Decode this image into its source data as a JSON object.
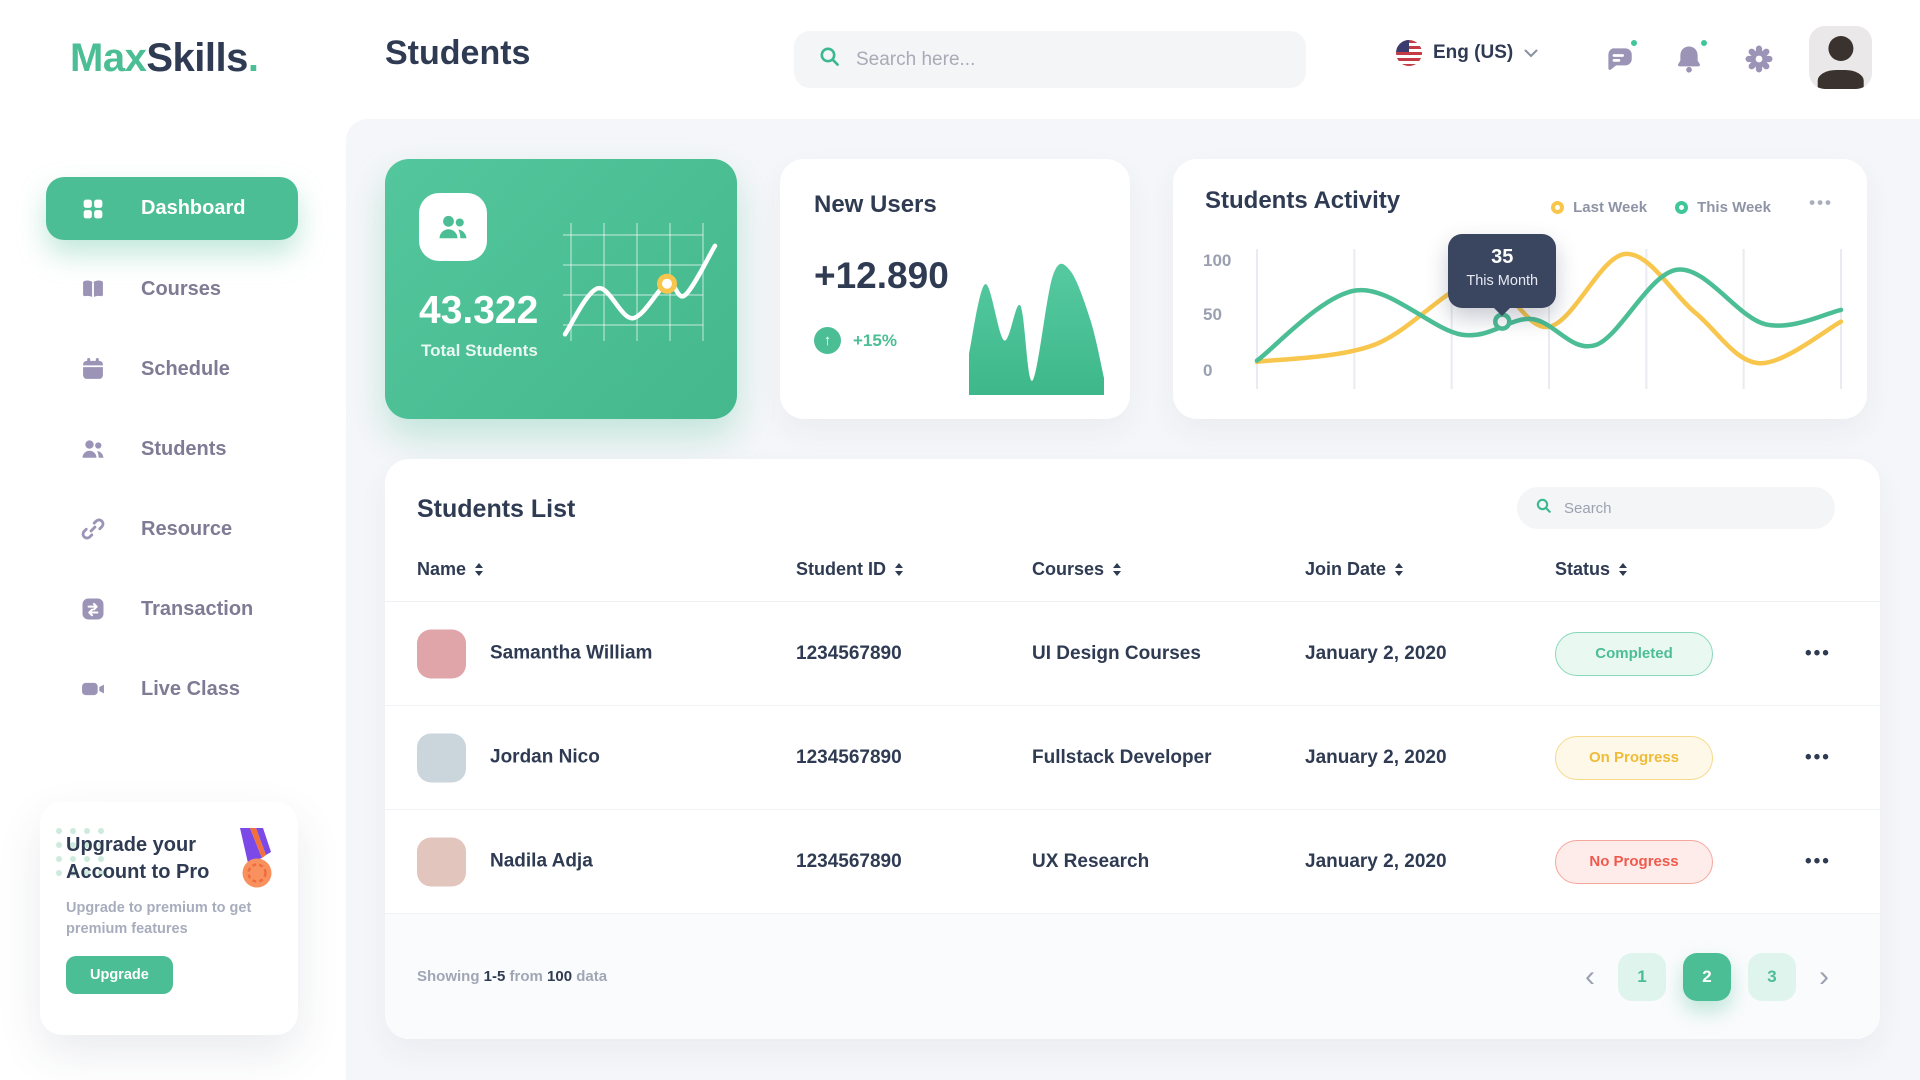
{
  "brand": {
    "max": "Max",
    "skills": "Skills",
    "dot": "."
  },
  "header": {
    "title": "Students",
    "search_placeholder": "Search here...",
    "language": "Eng (US)",
    "icons": [
      "chat-icon",
      "bell-icon",
      "gear-icon"
    ],
    "notification_dot_color": "#3FC79A"
  },
  "sidebar": {
    "items": [
      {
        "label": "Dashboard",
        "icon": "grid-icon",
        "active": true
      },
      {
        "label": "Courses",
        "icon": "book-icon",
        "active": false
      },
      {
        "label": "Schedule",
        "icon": "calendar-icon",
        "active": false
      },
      {
        "label": "Students",
        "icon": "students-icon",
        "active": false
      },
      {
        "label": "Resource",
        "icon": "link-icon",
        "active": false
      },
      {
        "label": "Transaction",
        "icon": "transfer-icon",
        "active": false
      },
      {
        "label": "Live Class",
        "icon": "video-icon",
        "active": false
      }
    ],
    "upgrade": {
      "title_line1": "Upgrade your",
      "title_line2": "Account to Pro",
      "description": "Upgrade to premium to get premium features",
      "button": "Upgrade",
      "icon": "medal-icon"
    }
  },
  "cards": {
    "total_students": {
      "value": "43.322",
      "label": "Total Students",
      "icon": "students-icon"
    },
    "new_users": {
      "title": "New Users",
      "value": "+12.890",
      "delta": "+15%",
      "delta_icon": "arrow-up-icon"
    }
  },
  "activity": {
    "title": "Students Activity",
    "legend": [
      {
        "label": "Last Week",
        "color": "#F8C64C"
      },
      {
        "label": "This Week",
        "color": "#4CBE95"
      }
    ],
    "y_ticks": [
      "100",
      "50",
      "0"
    ],
    "tooltip": {
      "value": "35",
      "label": "This Month"
    }
  },
  "chart_data": [
    {
      "name": "students_activity",
      "type": "line",
      "ylim": [
        0,
        100
      ],
      "y_ticks": [
        100,
        50,
        0
      ],
      "grid": "vertical",
      "legend_position": "top-right",
      "series": [
        {
          "name": "Last Week",
          "color": "#F8C64C",
          "points": [
            [
              0,
              17
            ],
            [
              0.2,
              30
            ],
            [
              0.38,
              80
            ],
            [
              0.5,
              44
            ],
            [
              0.63,
              100
            ],
            [
              0.75,
              55
            ],
            [
              0.86,
              16
            ],
            [
              1,
              48
            ]
          ]
        },
        {
          "name": "This Week",
          "color": "#4CBE95",
          "points": [
            [
              0,
              18
            ],
            [
              0.17,
              72
            ],
            [
              0.35,
              38
            ],
            [
              0.47,
              50
            ],
            [
              0.58,
              30
            ],
            [
              0.72,
              88
            ],
            [
              0.87,
              46
            ],
            [
              1,
              57
            ]
          ]
        }
      ],
      "tooltip": {
        "value": 35,
        "label": "This Month",
        "at": [
          0.42,
          48
        ]
      }
    },
    {
      "name": "total_students_trend",
      "type": "line",
      "color": "#FFFFFF",
      "grid": true,
      "marker": {
        "at": [
          0.68,
          62
        ],
        "color": "#F8C64C"
      },
      "points": [
        [
          0,
          18
        ],
        [
          0.22,
          58
        ],
        [
          0.45,
          32
        ],
        [
          0.68,
          62
        ],
        [
          0.8,
          52
        ],
        [
          1,
          95
        ]
      ]
    },
    {
      "name": "new_users_trend",
      "type": "area",
      "color": "#4CBE95",
      "points": [
        [
          0,
          30
        ],
        [
          0.12,
          82
        ],
        [
          0.26,
          40
        ],
        [
          0.38,
          66
        ],
        [
          0.47,
          10
        ],
        [
          0.62,
          88
        ],
        [
          0.75,
          92
        ],
        [
          0.9,
          55
        ],
        [
          1,
          12
        ]
      ]
    }
  ],
  "students_list": {
    "title": "Students List",
    "search_placeholder": "Search",
    "columns": [
      "Name",
      "Student ID",
      "Courses",
      "Join Date",
      "Status"
    ],
    "rows": [
      {
        "name": "Samantha William",
        "student_id": "1234567890",
        "course": "UI Design Courses",
        "join_date": "January 2, 2020",
        "status": "Completed",
        "status_type": "completed"
      },
      {
        "name": "Jordan Nico",
        "student_id": "1234567890",
        "course": "Fullstack Developer",
        "join_date": "January 2, 2020",
        "status": "On Progress",
        "status_type": "on-progress"
      },
      {
        "name": "Nadila Adja",
        "student_id": "1234567890",
        "course": "UX Research",
        "join_date": "January 2, 2020",
        "status": "No Progress",
        "status_type": "no-progress"
      }
    ],
    "footer": {
      "showing": "Showing",
      "range": "1-5",
      "from": "from",
      "total": "100",
      "data_word": "data"
    },
    "pagination": {
      "pages": [
        "1",
        "2",
        "3"
      ],
      "active": "2"
    }
  },
  "colors": {
    "accent_green": "#4CBE95",
    "accent_yellow": "#F8C64C",
    "accent_red": "#F0594C",
    "text_dark": "#2F3B52",
    "icon_muted": "#9B94B7",
    "tooltip_bg": "#3A4660"
  }
}
